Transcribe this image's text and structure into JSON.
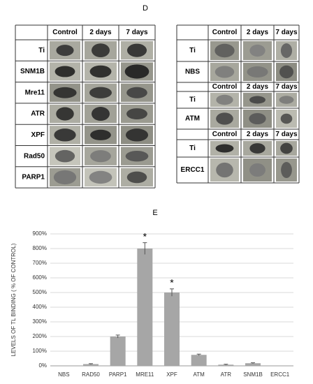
{
  "panel_d": {
    "label": "D",
    "left": {
      "columns": [
        "Control",
        "2 days",
        "7 days"
      ],
      "rows": [
        "Ti",
        "SNM1B",
        "Mre11",
        "ATR",
        "XPF",
        "Rad50",
        "PARP1"
      ]
    },
    "right": [
      {
        "columns": [
          "Control",
          "2 days",
          "7 days"
        ],
        "rows": [
          "Ti",
          "NBS"
        ]
      },
      {
        "columns": [
          "Control",
          "2 days",
          "7 days"
        ],
        "rows": [
          "Ti",
          "ATM"
        ]
      },
      {
        "columns": [
          "Control",
          "2 days",
          "7 days"
        ],
        "rows": [
          "Ti",
          "ERCC1"
        ]
      }
    ]
  },
  "chart_data": {
    "type": "bar",
    "panel_label": "E",
    "ylabel": "LEVELS OF TL BINDING  ( % OF CONTROL)",
    "categories": [
      "NBS",
      "RAD50",
      "PARP1",
      "MRE11",
      "XPF",
      "ATM",
      "ATR",
      "SNM1B",
      "ERCC1"
    ],
    "values": [
      0,
      12,
      200,
      800,
      500,
      75,
      8,
      18,
      0
    ],
    "errors": [
      0,
      3,
      10,
      40,
      25,
      5,
      3,
      3,
      0
    ],
    "annotations": [
      {
        "text": "*",
        "x": "MRE11"
      },
      {
        "text": "*",
        "x": "XPF"
      }
    ],
    "color": "#a6a6a6",
    "grid": true,
    "ylim": [
      0,
      900
    ],
    "yticks": [
      {
        "value": 0,
        "label": "0%"
      },
      {
        "value": 100,
        "label": "100%"
      },
      {
        "value": 200,
        "label": "200%"
      },
      {
        "value": 300,
        "label": "300%"
      },
      {
        "value": 400,
        "label": "400%"
      },
      {
        "value": 500,
        "label": "500%"
      },
      {
        "value": 600,
        "label": "600%"
      },
      {
        "value": 700,
        "label": "700%"
      },
      {
        "value": 800,
        "label": "800%"
      },
      {
        "value": 900,
        "label": "900%"
      }
    ]
  }
}
